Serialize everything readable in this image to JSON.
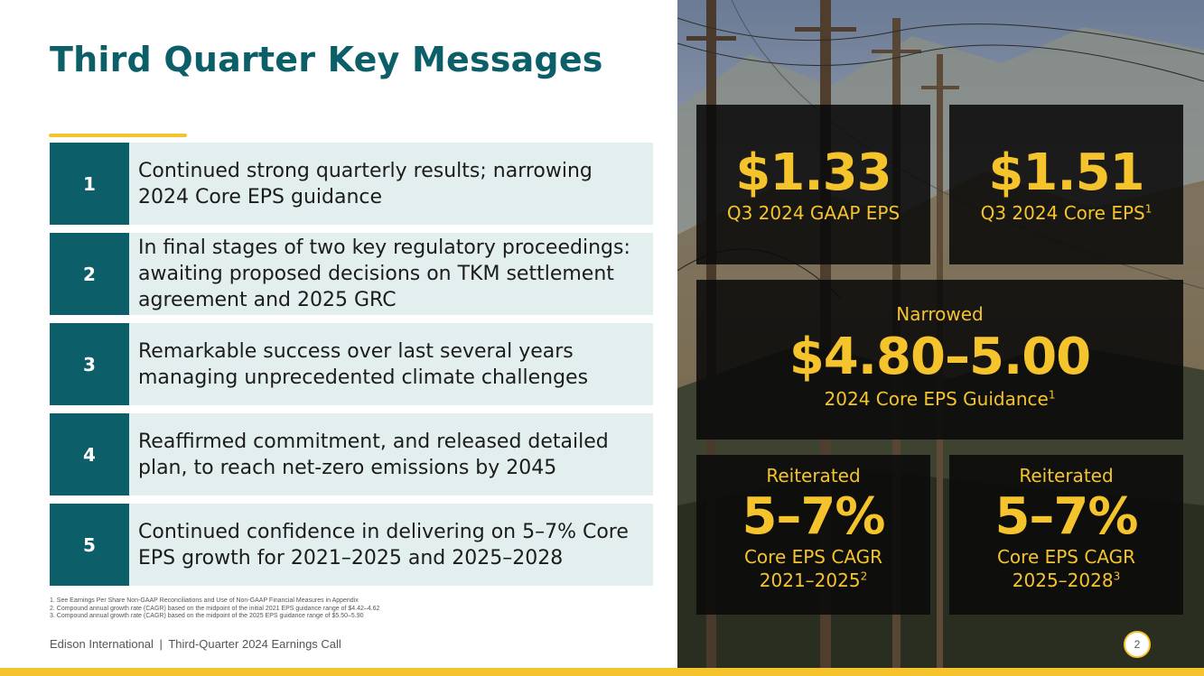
{
  "slide": {
    "title": "Third Quarter Key Messages",
    "page_number": "2"
  },
  "messages": [
    {
      "number": "1",
      "text": "Continued strong quarterly results; narrowing 2024 Core EPS guidance"
    },
    {
      "number": "2",
      "text": "In final stages of two key regulatory proceedings: awaiting proposed decisions on TKM settlement agreement and 2025 GRC"
    },
    {
      "number": "3",
      "text": "Remarkable success over last several years managing unprecedented climate challenges"
    },
    {
      "number": "4",
      "text": "Reaffirmed commitment, and released detailed plan, to reach net-zero emissions by 2045"
    },
    {
      "number": "5",
      "text": "Continued confidence in delivering on 5–7% Core EPS growth for 2021–2025 and 2025–2028"
    }
  ],
  "footnotes": [
    "1.  See Earnings Per Share Non-GAAP Reconciliations and Use of Non-GAAP Financial Measures in Appendix",
    "2.  Compound annual growth rate (CAGR) based on the midpoint of the initial 2021 EPS guidance range of $4.42–4.62",
    "3.  Compound annual growth rate (CAGR) based on the midpoint of the 2025 EPS guidance range of $5.50–5.90"
  ],
  "footer": {
    "company": "Edison International",
    "separator": "|",
    "event": "Third-Quarter 2024 Earnings Call"
  },
  "metrics": {
    "gaap_eps": {
      "value": "$1.33",
      "label": "Q3 2024 GAAP EPS"
    },
    "core_eps": {
      "value": "$1.51",
      "label": "Q3 2024 Core EPS",
      "footnote": "1"
    },
    "guidance": {
      "status": "Narrowed",
      "value": "$4.80–5.00",
      "label": "2024 Core EPS Guidance",
      "footnote": "1"
    },
    "cagr_2021_2025": {
      "status": "Reiterated",
      "value": "5–7%",
      "label": "Core EPS CAGR",
      "period": "2021–2025",
      "footnote": "2"
    },
    "cagr_2025_2028": {
      "status": "Reiterated",
      "value": "5–7%",
      "label": "Core EPS CAGR",
      "period": "2025–2028",
      "footnote": "3"
    }
  },
  "colors": {
    "teal": "#0c5f68",
    "row_background": "#e3efef",
    "accent_yellow": "#f5c42c"
  },
  "icons": {
    "background_photo": "power-lines-hillside-photo"
  }
}
